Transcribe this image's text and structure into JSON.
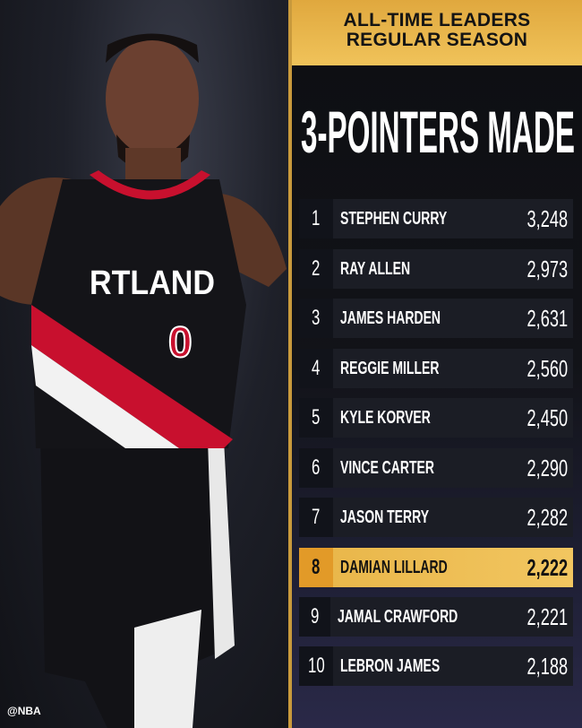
{
  "photo": {
    "jersey_text": "RTLAND",
    "jersey_number": "0",
    "watermark": "@NBA"
  },
  "header": {
    "line1": "ALL-TIME LEADERS",
    "line2": "REGULAR SEASON"
  },
  "title": "3-POINTERS MADE",
  "colors": {
    "gold": "#f0c35a",
    "highlight_rank": "#e29a28",
    "row_bg": "#1b1d25"
  },
  "leaders": [
    {
      "rank": "1",
      "name": "STEPHEN CURRY",
      "value": "3,248"
    },
    {
      "rank": "2",
      "name": "RAY ALLEN",
      "value": "2,973"
    },
    {
      "rank": "3",
      "name": "JAMES HARDEN",
      "value": "2,631"
    },
    {
      "rank": "4",
      "name": "REGGIE MILLER",
      "value": "2,560"
    },
    {
      "rank": "5",
      "name": "KYLE KORVER",
      "value": "2,450"
    },
    {
      "rank": "6",
      "name": "VINCE CARTER",
      "value": "2,290"
    },
    {
      "rank": "7",
      "name": "JASON TERRY",
      "value": "2,282"
    },
    {
      "rank": "8",
      "name": "DAMIAN LILLARD",
      "value": "2,222",
      "highlighted": true
    },
    {
      "rank": "9",
      "name": "JAMAL CRAWFORD",
      "value": "2,221"
    },
    {
      "rank": "10",
      "name": "LEBRON JAMES",
      "value": "2,188"
    }
  ]
}
